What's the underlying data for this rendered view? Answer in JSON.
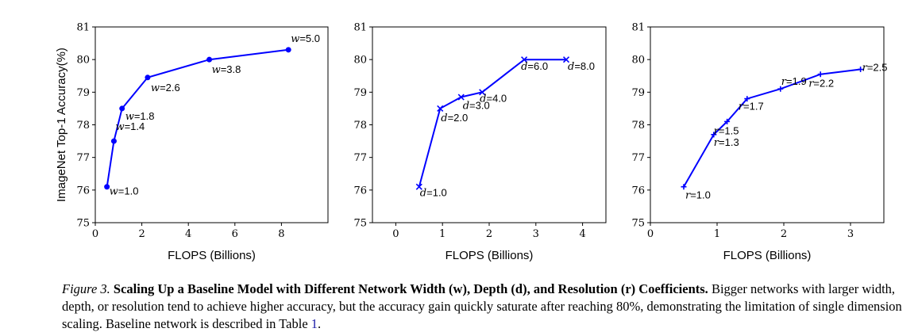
{
  "caption": {
    "lead": "Figure 3.",
    "title": "Scaling Up a Baseline Model with Different Network Width (w), Depth (d), and Resolution (r) Coefficients.",
    "body": "Bigger networks with larger width, depth, or resolution tend to achieve higher accuracy, but the accuracy gain quickly saturate after reaching 80%, demonstrating the limitation of single dimension scaling. Baseline network is described in Table",
    "ref": "1",
    "end": "."
  },
  "chart_data": [
    {
      "type": "line",
      "ylabel": "ImageNet Top-1 Accuracy(%)",
      "xlabel": "FLOPS (Billions)",
      "xlim": [
        0,
        10
      ],
      "ylim": [
        75,
        81
      ],
      "xticks": [
        "0",
        "2",
        "4",
        "6",
        "8"
      ],
      "yticks": [
        "75",
        "76",
        "77",
        "78",
        "79",
        "80",
        "81"
      ],
      "marker": "dot",
      "color": "#0000ff",
      "x": [
        0.5,
        0.8,
        1.15,
        2.25,
        4.9,
        8.3
      ],
      "y": [
        76.1,
        77.5,
        78.5,
        79.45,
        80.0,
        80.3
      ],
      "point_labels": [
        "w=1.0",
        "w=1.4",
        "w=1.8",
        "w=2.6",
        "w=3.8",
        "w=5.0"
      ]
    },
    {
      "type": "line",
      "xlabel": "FLOPS (Billions)",
      "xlim": [
        -0.5,
        4.5
      ],
      "ylim": [
        75,
        81
      ],
      "xticks": [
        "0",
        "1",
        "2",
        "3",
        "4"
      ],
      "yticks": [
        "75",
        "76",
        "77",
        "78",
        "79",
        "80",
        "81"
      ],
      "marker": "x",
      "color": "#0000ff",
      "x": [
        0.5,
        0.95,
        1.4,
        1.85,
        2.75,
        3.65
      ],
      "y": [
        76.1,
        78.5,
        78.85,
        79.0,
        80.0,
        80.0
      ],
      "point_labels": [
        "d=1.0",
        "d=2.0",
        "d=3.0",
        "d=4.0",
        "d=6.0",
        "d=8.0"
      ]
    },
    {
      "type": "line",
      "xlabel": "FLOPS (Billions)",
      "xlim": [
        0,
        3.5
      ],
      "ylim": [
        75,
        81
      ],
      "xticks": [
        "0",
        "1",
        "2",
        "3"
      ],
      "yticks": [
        "75",
        "76",
        "77",
        "78",
        "79",
        "80",
        "81"
      ],
      "marker": "plus",
      "color": "#0000ff",
      "x": [
        0.5,
        0.95,
        1.15,
        1.45,
        1.95,
        2.55,
        3.15
      ],
      "y": [
        76.1,
        77.7,
        78.1,
        78.8,
        79.1,
        79.55,
        79.7
      ],
      "point_labels": [
        "r=1.0",
        "r=1.3",
        "r=1.5",
        "r=1.7",
        "r=1.9",
        "r=2.2",
        "r=2.5"
      ]
    }
  ]
}
